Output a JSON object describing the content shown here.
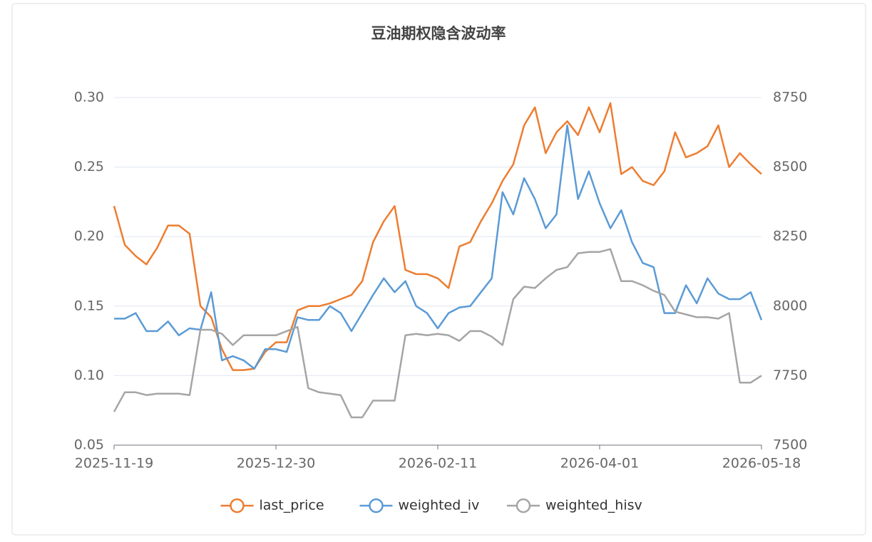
{
  "chart_data": {
    "type": "line",
    "title": "豆油期权隐含波动率",
    "categories": [
      "2025-11-19",
      null,
      null,
      null,
      null,
      null,
      null,
      null,
      null,
      null,
      null,
      null,
      null,
      null,
      null,
      "2025-12-30",
      null,
      null,
      null,
      null,
      null,
      null,
      null,
      null,
      null,
      null,
      null,
      null,
      null,
      null,
      "2026-02-11",
      null,
      null,
      null,
      null,
      null,
      null,
      null,
      null,
      null,
      null,
      null,
      null,
      null,
      null,
      "2026-04-01",
      null,
      null,
      null,
      null,
      null,
      null,
      null,
      null,
      null,
      null,
      null,
      null,
      null,
      null,
      "2026-05-18"
    ],
    "series": [
      {
        "name": "last_price",
        "color": "#ed7d31",
        "axis": "y2",
        "values": [
          8360,
          8220,
          8180,
          8150,
          8210,
          8290,
          8290,
          8260,
          8000,
          7960,
          7845,
          7770,
          7770,
          7775,
          7835,
          7870,
          7870,
          7985,
          8000,
          8000,
          8010,
          8025,
          8040,
          8090,
          8230,
          8305,
          8360,
          8130,
          8115,
          8115,
          8100,
          8065,
          8215,
          8230,
          8305,
          8370,
          8450,
          8510,
          8650,
          8715,
          8550,
          8625,
          8665,
          8615,
          8715,
          8625,
          8730,
          8475,
          8500,
          8450,
          8435,
          8485,
          8625,
          8535,
          8550,
          8575,
          8650,
          8500,
          8550,
          8510,
          8475
        ]
      },
      {
        "name": "weighted_iv",
        "color": "#5b9bd5",
        "values": [
          0.141,
          0.141,
          0.145,
          0.132,
          0.132,
          0.139,
          0.129,
          0.134,
          0.133,
          0.16,
          0.111,
          0.114,
          0.111,
          0.105,
          0.119,
          0.119,
          0.117,
          0.142,
          0.14,
          0.14,
          0.15,
          0.145,
          0.132,
          0.145,
          0.158,
          0.17,
          0.16,
          0.168,
          0.15,
          0.145,
          0.134,
          0.145,
          0.149,
          0.15,
          0.16,
          0.17,
          0.232,
          0.216,
          0.242,
          0.227,
          0.206,
          0.216,
          0.28,
          0.227,
          0.247,
          0.224,
          0.206,
          0.219,
          0.196,
          0.181,
          0.178,
          0.145,
          0.145,
          0.165,
          0.152,
          0.17,
          0.159,
          0.155,
          0.155,
          0.16,
          0.14
        ]
      },
      {
        "name": "weighted_hisv",
        "color": "#a5a5a5",
        "values": [
          0.074,
          0.088,
          0.088,
          0.086,
          0.087,
          0.087,
          0.087,
          0.086,
          0.133,
          0.133,
          0.13,
          0.122,
          0.129,
          0.129,
          0.129,
          0.129,
          0.132,
          0.135,
          0.091,
          0.088,
          0.087,
          0.086,
          0.07,
          0.07,
          0.082,
          0.082,
          0.082,
          0.129,
          0.13,
          0.129,
          0.13,
          0.129,
          0.125,
          0.132,
          0.132,
          0.128,
          0.122,
          0.155,
          0.164,
          0.163,
          0.17,
          0.176,
          0.178,
          0.188,
          0.189,
          0.189,
          0.191,
          0.168,
          0.168,
          0.165,
          0.161,
          0.158,
          0.146,
          0.144,
          0.142,
          0.142,
          0.141,
          0.145,
          0.095,
          0.095,
          0.1
        ]
      }
    ],
    "ylim": [
      0.05,
      0.3
    ],
    "yticks": [
      0.05,
      {
        "value": 0.1,
        "label": "0.10"
      },
      0.15,
      {
        "value": 0.2,
        "label": "0.20"
      },
      0.25,
      {
        "value": 0.3,
        "label": "0.30"
      }
    ],
    "y2lim": [
      7500,
      8750
    ],
    "y2ticks": [
      7500,
      7750,
      8000,
      8250,
      8500,
      8750
    ],
    "grid": true,
    "legend": "bottom"
  }
}
